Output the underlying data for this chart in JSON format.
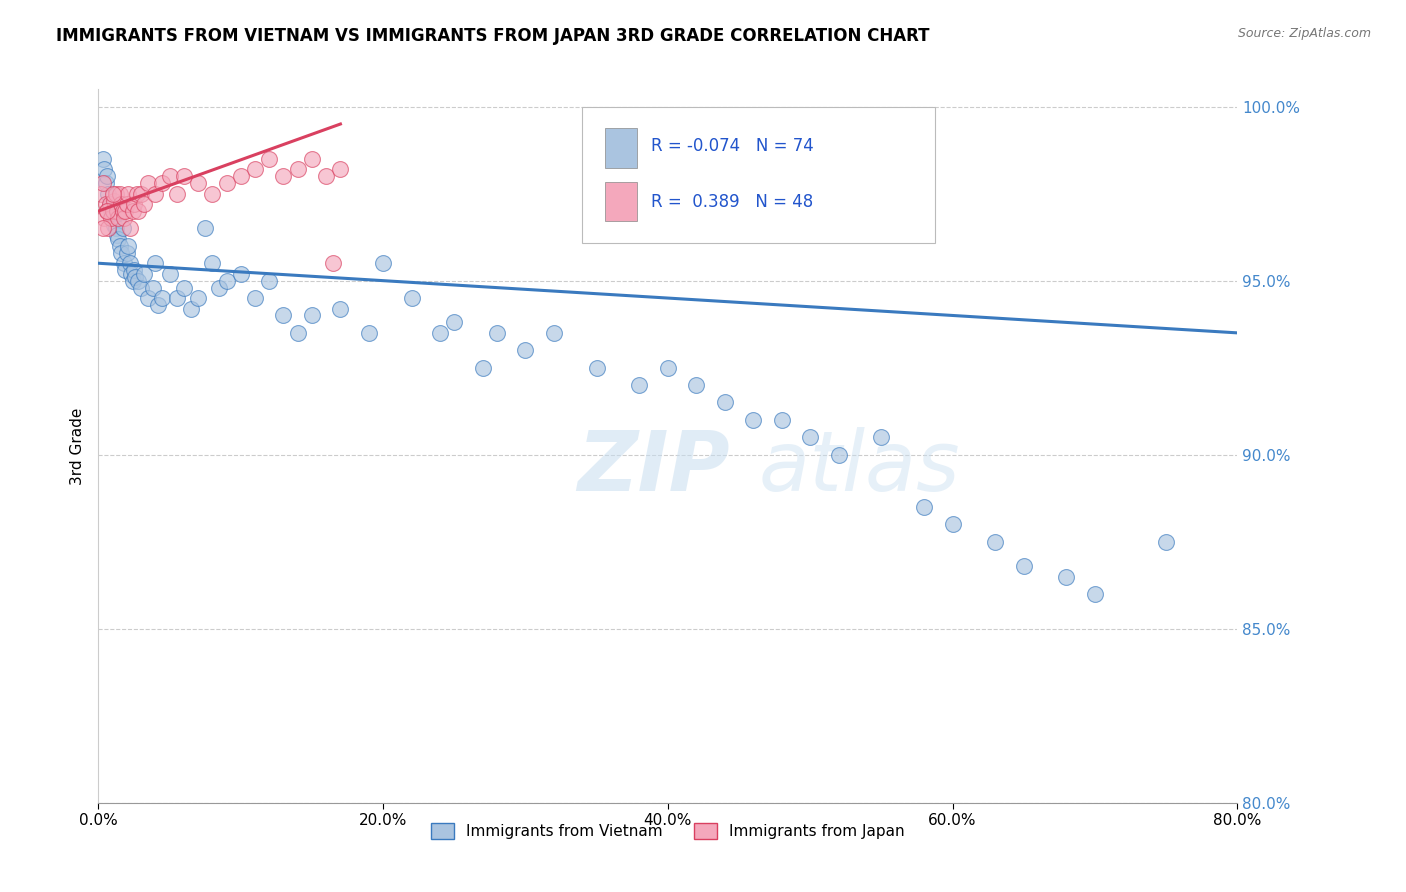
{
  "title": "IMMIGRANTS FROM VIETNAM VS IMMIGRANTS FROM JAPAN 3RD GRADE CORRELATION CHART",
  "source": "Source: ZipAtlas.com",
  "ylabel": "3rd Grade",
  "xlim": [
    0.0,
    80.0
  ],
  "ylim": [
    80.0,
    100.5
  ],
  "yticks": [
    80.0,
    85.0,
    90.0,
    95.0,
    100.0
  ],
  "xticks": [
    0.0,
    20.0,
    40.0,
    60.0,
    80.0
  ],
  "r_vietnam": -0.074,
  "n_vietnam": 74,
  "r_japan": 0.389,
  "n_japan": 48,
  "color_vietnam": "#aac4e0",
  "color_japan": "#f4a8bc",
  "line_color_vietnam": "#3a7abf",
  "line_color_japan": "#d94060",
  "watermark_zip": "ZIP",
  "watermark_atlas": "atlas",
  "legend_vietnam": "Immigrants from Vietnam",
  "legend_japan": "Immigrants from Japan",
  "vietnam_x": [
    0.3,
    0.4,
    0.5,
    0.6,
    0.7,
    0.8,
    0.9,
    1.0,
    1.1,
    1.2,
    1.3,
    1.4,
    1.5,
    1.6,
    1.7,
    1.8,
    1.9,
    2.0,
    2.1,
    2.2,
    2.3,
    2.4,
    2.5,
    2.6,
    2.8,
    3.0,
    3.2,
    3.5,
    3.8,
    4.0,
    4.2,
    4.5,
    5.0,
    5.5,
    6.0,
    6.5,
    7.0,
    7.5,
    8.0,
    8.5,
    9.0,
    10.0,
    11.0,
    12.0,
    13.0,
    14.0,
    15.0,
    17.0,
    19.0,
    20.0,
    22.0,
    24.0,
    25.0,
    27.0,
    28.0,
    30.0,
    32.0,
    35.0,
    38.0,
    40.0,
    42.0,
    44.0,
    46.0,
    48.0,
    50.0,
    52.0,
    55.0,
    58.0,
    60.0,
    63.0,
    65.0,
    68.0,
    70.0,
    75.0
  ],
  "vietnam_y": [
    98.5,
    98.2,
    97.8,
    98.0,
    97.5,
    97.2,
    97.0,
    96.8,
    96.6,
    96.5,
    96.3,
    96.2,
    96.0,
    95.8,
    96.5,
    95.5,
    95.3,
    95.8,
    96.0,
    95.5,
    95.2,
    95.0,
    95.3,
    95.1,
    95.0,
    94.8,
    95.2,
    94.5,
    94.8,
    95.5,
    94.3,
    94.5,
    95.2,
    94.5,
    94.8,
    94.2,
    94.5,
    96.5,
    95.5,
    94.8,
    95.0,
    95.2,
    94.5,
    95.0,
    94.0,
    93.5,
    94.0,
    94.2,
    93.5,
    95.5,
    94.5,
    93.5,
    93.8,
    92.5,
    93.5,
    93.0,
    93.5,
    92.5,
    92.0,
    92.5,
    92.0,
    91.5,
    91.0,
    91.0,
    90.5,
    90.0,
    90.5,
    88.5,
    88.0,
    87.5,
    86.8,
    86.5,
    86.0,
    87.5
  ],
  "japan_x": [
    0.2,
    0.3,
    0.4,
    0.5,
    0.6,
    0.7,
    0.8,
    0.9,
    1.0,
    1.1,
    1.2,
    1.3,
    1.4,
    1.5,
    1.6,
    1.7,
    1.8,
    1.9,
    2.0,
    2.1,
    2.2,
    2.4,
    2.5,
    2.7,
    2.8,
    3.0,
    3.2,
    3.5,
    4.0,
    4.5,
    5.0,
    5.5,
    6.0,
    7.0,
    8.0,
    9.0,
    10.0,
    11.0,
    12.0,
    13.0,
    14.0,
    15.0,
    16.0,
    17.0,
    0.3,
    0.6,
    1.0,
    16.5
  ],
  "japan_y": [
    97.5,
    97.8,
    96.8,
    97.2,
    97.0,
    96.5,
    97.2,
    96.8,
    97.0,
    97.3,
    97.5,
    97.0,
    96.8,
    97.5,
    97.2,
    97.0,
    96.8,
    97.0,
    97.2,
    97.5,
    96.5,
    97.0,
    97.2,
    97.5,
    97.0,
    97.5,
    97.2,
    97.8,
    97.5,
    97.8,
    98.0,
    97.5,
    98.0,
    97.8,
    97.5,
    97.8,
    98.0,
    98.2,
    98.5,
    98.0,
    98.2,
    98.5,
    98.0,
    98.2,
    96.5,
    97.0,
    97.5,
    95.5
  ],
  "viet_line_x0": 0.0,
  "viet_line_y0": 95.5,
  "viet_line_x1": 80.0,
  "viet_line_y1": 93.5,
  "japan_line_x0": 0.0,
  "japan_line_y0": 97.0,
  "japan_line_x1": 17.0,
  "japan_line_y1": 99.5
}
